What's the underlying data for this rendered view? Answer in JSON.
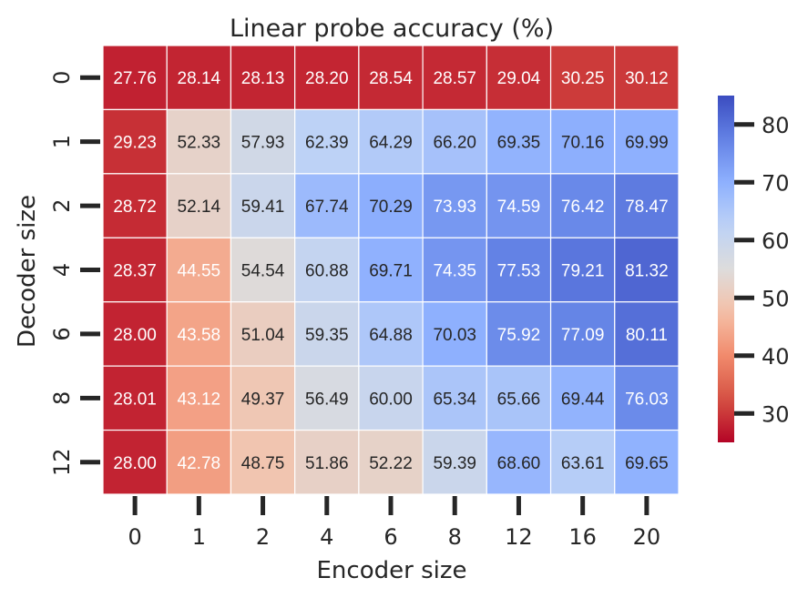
{
  "chart_data": {
    "type": "heatmap",
    "title": "Linear probe accuracy (%)",
    "xlabel": "Encoder size",
    "ylabel": "Decoder size",
    "x_categories": [
      "0",
      "1",
      "2",
      "4",
      "6",
      "8",
      "12",
      "16",
      "20"
    ],
    "y_categories": [
      "0",
      "1",
      "2",
      "4",
      "6",
      "8",
      "12"
    ],
    "values": [
      [
        27.76,
        28.14,
        28.13,
        28.2,
        28.54,
        28.57,
        29.04,
        30.25,
        30.12
      ],
      [
        29.23,
        52.33,
        57.93,
        62.39,
        64.29,
        66.2,
        69.35,
        70.16,
        69.99
      ],
      [
        28.72,
        52.14,
        59.41,
        67.74,
        70.29,
        73.93,
        74.59,
        76.42,
        78.47
      ],
      [
        28.37,
        44.55,
        54.54,
        60.88,
        69.71,
        74.35,
        77.53,
        79.21,
        81.32
      ],
      [
        28.0,
        43.58,
        51.04,
        59.35,
        64.88,
        70.03,
        75.92,
        77.09,
        80.11
      ],
      [
        28.01,
        43.12,
        49.37,
        56.49,
        60.0,
        65.34,
        65.66,
        69.44,
        76.03
      ],
      [
        28.0,
        42.78,
        48.75,
        51.86,
        52.22,
        59.39,
        68.6,
        63.61,
        69.65
      ]
    ],
    "colormap": "coolwarm_r",
    "vmin": 25,
    "vmax": 85,
    "colorbar_ticks": [
      30,
      40,
      50,
      60,
      70,
      80
    ],
    "colors": {
      "low": "#b40426",
      "mid": "#dddcdc",
      "high": "#3b4cc0",
      "annotation_light": "#ffffff",
      "annotation_dark": "#262626",
      "gridline": "#ffffff"
    }
  }
}
